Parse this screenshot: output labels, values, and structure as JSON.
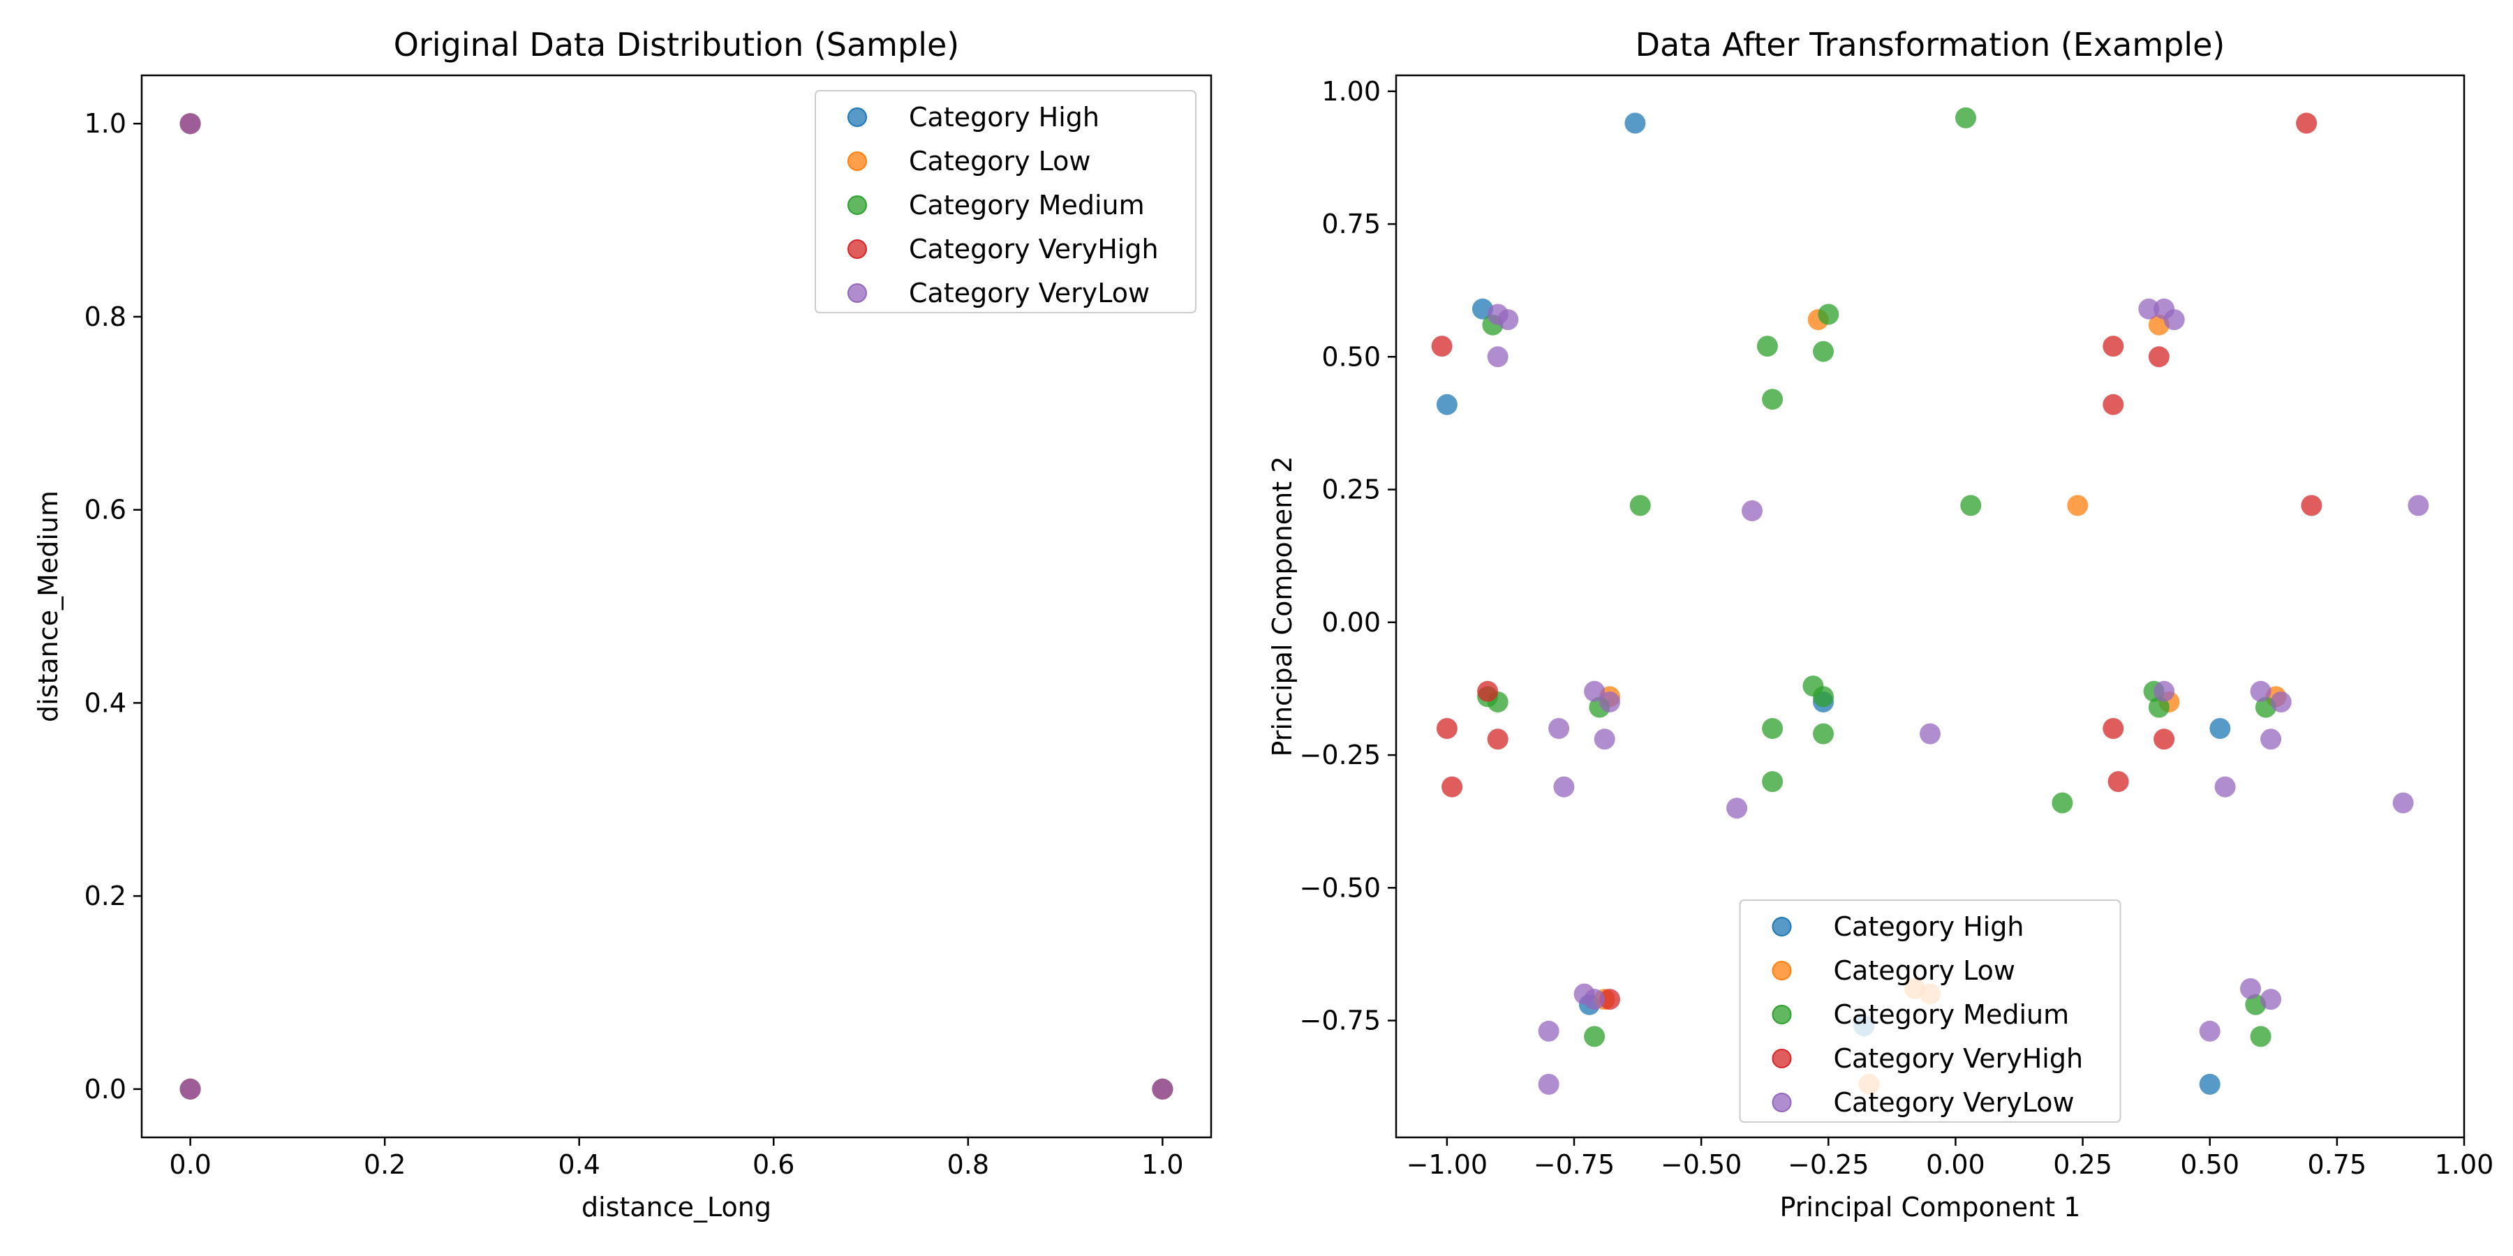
{
  "colors": {
    "High": "#1f77b4",
    "Low": "#ff7f0e",
    "Medium": "#2ca02c",
    "VeryHigh": "#d62728",
    "VeryLow": "#9467bd"
  },
  "chart_data": [
    {
      "type": "scatter",
      "title": "Original Data Distribution (Sample)",
      "xlabel": "distance_Long",
      "ylabel": "distance_Medium",
      "xlim": [
        -0.05,
        1.05
      ],
      "ylim": [
        -0.05,
        1.05
      ],
      "xticks": [
        "0.0",
        "0.2",
        "0.4",
        "0.6",
        "0.8",
        "1.0"
      ],
      "yticks": [
        "0.0",
        "0.2",
        "0.4",
        "0.6",
        "0.8",
        "1.0"
      ],
      "grid": false,
      "legend_position": "top-right",
      "series": [
        {
          "name": "Category High",
          "key": "High",
          "points": [
            [
              0,
              1
            ],
            [
              0,
              0
            ],
            [
              1,
              0
            ]
          ]
        },
        {
          "name": "Category Low",
          "key": "Low",
          "points": [
            [
              0,
              1
            ],
            [
              0,
              0
            ],
            [
              1,
              0
            ]
          ]
        },
        {
          "name": "Category Medium",
          "key": "Medium",
          "points": [
            [
              0,
              1
            ],
            [
              0,
              0
            ],
            [
              1,
              0
            ]
          ]
        },
        {
          "name": "Category VeryHigh",
          "key": "VeryHigh",
          "points": [
            [
              0,
              1
            ],
            [
              0,
              0
            ],
            [
              1,
              0
            ]
          ]
        },
        {
          "name": "Category VeryLow",
          "key": "VeryLow",
          "points": [
            [
              0,
              1
            ],
            [
              0,
              0
            ],
            [
              1,
              0
            ]
          ]
        }
      ]
    },
    {
      "type": "scatter",
      "title": "Data After Transformation (Example)",
      "xlabel": "Principal Component 1",
      "ylabel": "Principal Component 2",
      "xlim": [
        -1.1,
        1.0
      ],
      "ylim": [
        -0.97,
        1.03
      ],
      "xticks": [
        "−1.00",
        "−0.75",
        "−0.50",
        "−0.25",
        "0.00",
        "0.25",
        "0.50",
        "0.75",
        "1.00"
      ],
      "yticks": [
        "−0.75",
        "−0.50",
        "−0.25",
        "0.00",
        "0.25",
        "0.50",
        "0.75",
        "1.00"
      ],
      "grid": false,
      "legend_position": "bottom-center",
      "series": [
        {
          "name": "Category High",
          "key": "High",
          "points": [
            [
              -0.63,
              0.94
            ],
            [
              -0.93,
              0.59
            ],
            [
              -1.0,
              0.41
            ],
            [
              -0.26,
              -0.15
            ],
            [
              0.52,
              -0.2
            ],
            [
              -0.72,
              -0.72
            ],
            [
              -0.18,
              -0.76
            ],
            [
              0.5,
              -0.87
            ]
          ]
        },
        {
          "name": "Category Low",
          "key": "Low",
          "points": [
            [
              -0.27,
              0.57
            ],
            [
              0.4,
              0.56
            ],
            [
              -0.68,
              -0.14
            ],
            [
              0.42,
              -0.15
            ],
            [
              0.63,
              -0.14
            ],
            [
              0.24,
              0.22
            ],
            [
              -0.08,
              -0.69
            ],
            [
              -0.69,
              -0.71
            ],
            [
              -0.17,
              -0.87
            ],
            [
              -0.05,
              -0.7
            ]
          ]
        },
        {
          "name": "Category Medium",
          "key": "Medium",
          "points": [
            [
              0.02,
              0.95
            ],
            [
              -0.91,
              0.56
            ],
            [
              -0.25,
              0.58
            ],
            [
              -0.37,
              0.52
            ],
            [
              -0.26,
              0.51
            ],
            [
              -0.36,
              0.42
            ],
            [
              -0.62,
              0.22
            ],
            [
              0.03,
              0.22
            ],
            [
              -0.92,
              -0.14
            ],
            [
              -0.9,
              -0.15
            ],
            [
              -0.7,
              -0.16
            ],
            [
              -0.28,
              -0.12
            ],
            [
              -0.26,
              -0.14
            ],
            [
              0.39,
              -0.13
            ],
            [
              0.4,
              -0.16
            ],
            [
              0.61,
              -0.16
            ],
            [
              -0.36,
              -0.2
            ],
            [
              -0.26,
              -0.21
            ],
            [
              -0.36,
              -0.3
            ],
            [
              0.21,
              -0.34
            ],
            [
              -0.71,
              -0.78
            ],
            [
              0.59,
              -0.72
            ],
            [
              0.6,
              -0.78
            ]
          ]
        },
        {
          "name": "Category VeryHigh",
          "key": "VeryHigh",
          "points": [
            [
              0.69,
              0.94
            ],
            [
              -1.01,
              0.52
            ],
            [
              0.31,
              0.52
            ],
            [
              0.4,
              0.5
            ],
            [
              0.31,
              0.41
            ],
            [
              0.7,
              0.22
            ],
            [
              -0.92,
              -0.13
            ],
            [
              -1.0,
              -0.2
            ],
            [
              -0.9,
              -0.22
            ],
            [
              0.31,
              -0.2
            ],
            [
              0.41,
              -0.22
            ],
            [
              -0.99,
              -0.31
            ],
            [
              0.32,
              -0.3
            ],
            [
              -0.68,
              -0.71
            ]
          ]
        },
        {
          "name": "Category VeryLow",
          "key": "VeryLow",
          "points": [
            [
              -0.9,
              0.58
            ],
            [
              -0.88,
              0.57
            ],
            [
              0.38,
              0.59
            ],
            [
              0.41,
              0.59
            ],
            [
              0.43,
              0.57
            ],
            [
              -0.9,
              0.5
            ],
            [
              -0.4,
              0.21
            ],
            [
              0.91,
              0.22
            ],
            [
              -0.71,
              -0.13
            ],
            [
              -0.68,
              -0.15
            ],
            [
              0.41,
              -0.13
            ],
            [
              0.6,
              -0.13
            ],
            [
              0.64,
              -0.15
            ],
            [
              -0.78,
              -0.2
            ],
            [
              -0.05,
              -0.21
            ],
            [
              0.62,
              -0.22
            ],
            [
              -0.69,
              -0.22
            ],
            [
              -0.77,
              -0.31
            ],
            [
              0.53,
              -0.31
            ],
            [
              -0.43,
              -0.35
            ],
            [
              0.88,
              -0.34
            ],
            [
              -0.73,
              -0.7
            ],
            [
              -0.71,
              -0.71
            ],
            [
              0.58,
              -0.69
            ],
            [
              0.62,
              -0.71
            ],
            [
              -0.8,
              -0.77
            ],
            [
              0.5,
              -0.77
            ],
            [
              -0.8,
              -0.87
            ]
          ]
        }
      ]
    }
  ]
}
